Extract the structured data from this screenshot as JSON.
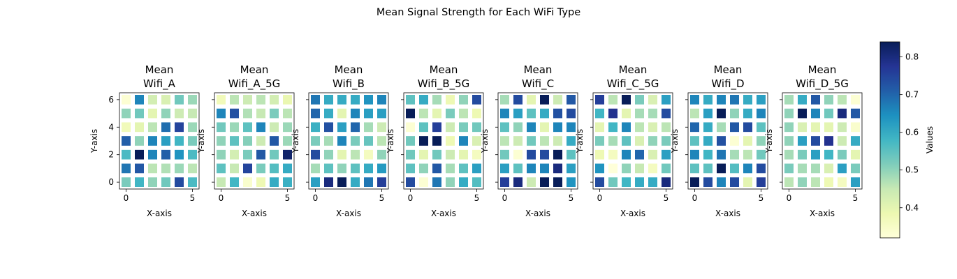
{
  "figure": {
    "title": "Mean Signal Strength for Each WiFi Type"
  },
  "chart_data": {
    "type": "heatmap",
    "title": "Mean Signal Strength for Each WiFi Type",
    "colormap": "YlGnBu",
    "vmin": 0.32,
    "vmax": 0.84,
    "colorbar": {
      "label": "Values",
      "ticks": [
        0.4,
        0.5,
        0.6,
        0.7,
        0.8
      ],
      "tick_labels": [
        "0.4",
        "0.5",
        "0.6",
        "0.7",
        "0.8"
      ],
      "placement": "right"
    },
    "xlabel": "X-axis",
    "ylabel": "Y-axis",
    "x_ticks": [
      0,
      5
    ],
    "x_tick_labels": [
      "0",
      "5"
    ],
    "y_ticks": [
      0,
      2,
      4,
      6
    ],
    "y_tick_labels": [
      "0",
      "2",
      "4",
      "6"
    ],
    "grid": false,
    "panels": [
      {
        "title_line1": "Mean",
        "title_line2": "Wifi_A",
        "grid_rows_top_to_bottom": [
          [
            0.33,
            0.66,
            0.43,
            0.42,
            0.53,
            0.49
          ],
          [
            0.5,
            0.53,
            0.4,
            0.5,
            0.44,
            0.45
          ],
          [
            0.37,
            0.4,
            0.46,
            0.69,
            0.75,
            0.49
          ],
          [
            0.71,
            0.5,
            0.66,
            0.62,
            0.58,
            0.52
          ],
          [
            0.57,
            0.84,
            0.66,
            0.71,
            0.64,
            0.57
          ],
          [
            0.68,
            0.72,
            0.46,
            0.47,
            0.49,
            0.46
          ],
          [
            0.52,
            0.58,
            0.5,
            0.53,
            0.74,
            0.57
          ]
        ]
      },
      {
        "title_line1": "Mean",
        "title_line2": "Wifi_A_5G",
        "grid_rows_top_to_bottom": [
          [
            0.37,
            0.46,
            0.44,
            0.46,
            0.43,
            0.39
          ],
          [
            0.66,
            0.73,
            0.47,
            0.45,
            0.52,
            0.46
          ],
          [
            0.53,
            0.49,
            0.55,
            0.66,
            0.44,
            0.49
          ],
          [
            0.5,
            0.55,
            0.51,
            0.44,
            0.72,
            0.49
          ],
          [
            0.5,
            0.43,
            0.52,
            0.72,
            0.53,
            0.82
          ],
          [
            0.55,
            0.45,
            0.75,
            0.52,
            0.56,
            0.6
          ],
          [
            0.45,
            0.58,
            0.34,
            0.38,
            0.6,
            0.59
          ]
        ]
      },
      {
        "title_line1": "Mean",
        "title_line2": "Wifi_B",
        "grid_rows_top_to_bottom": [
          [
            0.68,
            0.6,
            0.6,
            0.6,
            0.64,
            0.66
          ],
          [
            0.7,
            0.6,
            0.4,
            0.66,
            0.62,
            0.62
          ],
          [
            0.59,
            0.73,
            0.62,
            0.7,
            0.48,
            0.44
          ],
          [
            0.52,
            0.48,
            0.66,
            0.52,
            0.54,
            0.46
          ],
          [
            0.74,
            0.5,
            0.4,
            0.46,
            0.36,
            0.5
          ],
          [
            0.48,
            0.55,
            0.5,
            0.55,
            0.6,
            0.63
          ],
          [
            0.62,
            0.8,
            0.84,
            0.6,
            0.68,
            0.76
          ]
        ]
      },
      {
        "title_line1": "Mean",
        "title_line2": "Wifi_B_5G",
        "grid_rows_top_to_bottom": [
          [
            0.55,
            0.6,
            0.48,
            0.38,
            0.5,
            0.74
          ],
          [
            0.84,
            0.46,
            0.4,
            0.52,
            0.46,
            0.38
          ],
          [
            0.33,
            0.55,
            0.76,
            0.44,
            0.52,
            0.53
          ],
          [
            0.53,
            0.84,
            0.84,
            0.38,
            0.66,
            0.42
          ],
          [
            0.53,
            0.4,
            0.53,
            0.44,
            0.4,
            0.36
          ],
          [
            0.55,
            0.5,
            0.72,
            0.48,
            0.55,
            0.62
          ],
          [
            0.74,
            0.33,
            0.68,
            0.5,
            0.6,
            0.56
          ]
        ]
      },
      {
        "title_line1": "Mean",
        "title_line2": "Wifi_C",
        "grid_rows_top_to_bottom": [
          [
            0.48,
            0.74,
            0.4,
            0.84,
            0.44,
            0.72
          ],
          [
            0.66,
            0.62,
            0.55,
            0.6,
            0.73,
            0.74
          ],
          [
            0.55,
            0.5,
            0.66,
            0.4,
            0.66,
            0.66
          ],
          [
            0.46,
            0.44,
            0.53,
            0.46,
            0.44,
            0.6
          ],
          [
            0.53,
            0.33,
            0.74,
            0.74,
            0.84,
            0.55
          ],
          [
            0.62,
            0.55,
            0.66,
            0.66,
            0.8,
            0.62
          ],
          [
            0.76,
            0.8,
            0.44,
            0.84,
            0.84,
            0.64
          ]
        ]
      },
      {
        "title_line1": "Mean",
        "title_line2": "Wifi_C_5G",
        "grid_rows_top_to_bottom": [
          [
            0.76,
            0.46,
            0.84,
            0.52,
            0.42,
            0.62
          ],
          [
            0.58,
            0.78,
            0.4,
            0.48,
            0.48,
            0.74
          ],
          [
            0.4,
            0.58,
            0.66,
            0.46,
            0.42,
            0.46
          ],
          [
            0.52,
            0.48,
            0.55,
            0.42,
            0.5,
            0.52
          ],
          [
            0.38,
            0.36,
            0.66,
            0.7,
            0.42,
            0.62
          ],
          [
            0.64,
            0.32,
            0.5,
            0.45,
            0.36,
            0.53
          ],
          [
            0.74,
            0.53,
            0.58,
            0.6,
            0.6,
            0.8
          ]
        ]
      },
      {
        "title_line1": "Mean",
        "title_line2": "Wifi_D",
        "grid_rows_top_to_bottom": [
          [
            0.66,
            0.6,
            0.66,
            0.68,
            0.6,
            0.62
          ],
          [
            0.46,
            0.62,
            0.84,
            0.5,
            0.6,
            0.66
          ],
          [
            0.7,
            0.6,
            0.48,
            0.72,
            0.74,
            0.55
          ],
          [
            0.55,
            0.6,
            0.73,
            0.33,
            0.4,
            0.5
          ],
          [
            0.66,
            0.58,
            0.68,
            0.48,
            0.46,
            0.53
          ],
          [
            0.55,
            0.55,
            0.84,
            0.56,
            0.66,
            0.74
          ],
          [
            0.84,
            0.74,
            0.66,
            0.74,
            0.4,
            0.76
          ]
        ]
      },
      {
        "title_line1": "Mean",
        "title_line2": "Wifi_D_5G",
        "grid_rows_top_to_bottom": [
          [
            0.48,
            0.6,
            0.72,
            0.5,
            0.46,
            0.33
          ],
          [
            0.5,
            0.84,
            0.66,
            0.53,
            0.8,
            0.72
          ],
          [
            0.5,
            0.42,
            0.4,
            0.4,
            0.44,
            0.34
          ],
          [
            0.5,
            0.62,
            0.74,
            0.78,
            0.44,
            0.6
          ],
          [
            0.48,
            0.52,
            0.62,
            0.58,
            0.52,
            0.4
          ],
          [
            0.52,
            0.48,
            0.48,
            0.42,
            0.62,
            0.52
          ],
          [
            0.46,
            0.5,
            0.46,
            0.38,
            0.36,
            0.62
          ]
        ]
      }
    ]
  }
}
